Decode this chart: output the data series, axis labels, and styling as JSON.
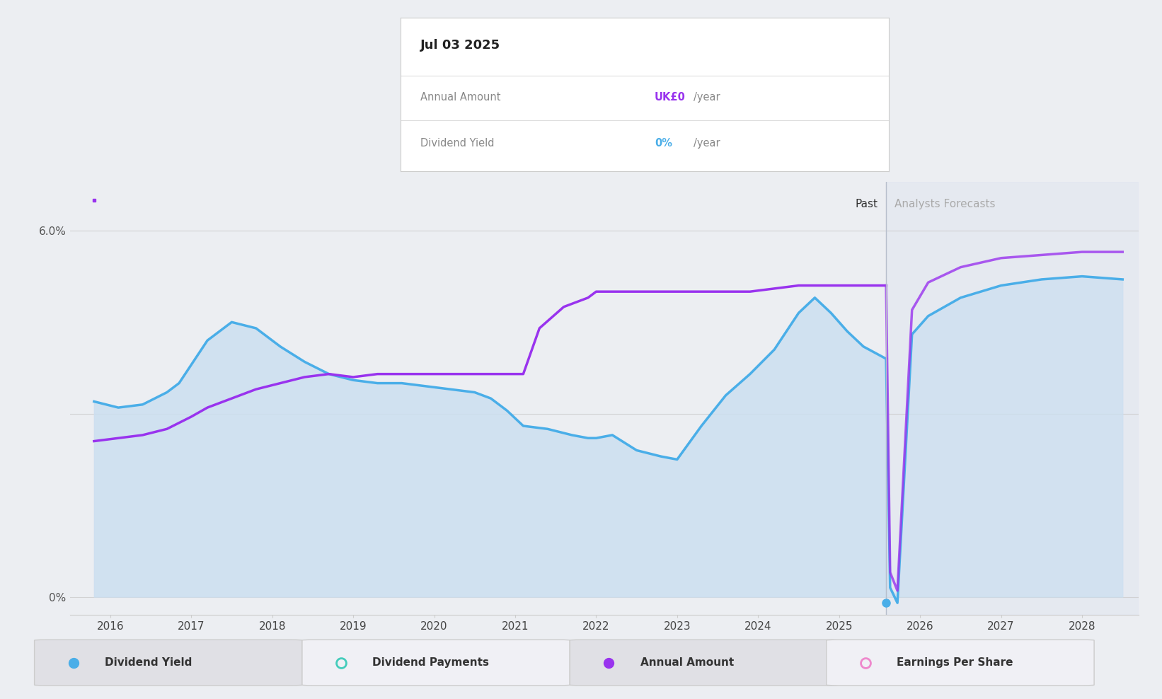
{
  "bg_color": "#eceef2",
  "plot_bg_color": "#eceef2",
  "x_min": 2015.5,
  "x_max": 2028.7,
  "y_min": -0.3,
  "y_max": 6.8,
  "divider_x": 2025.58,
  "past_label": "Past",
  "forecast_label": "Analysts Forecasts",
  "ytick_vals": [
    0,
    3,
    6
  ],
  "ytick_labels": [
    "0%",
    "",
    "6.0%"
  ],
  "xtick_labels": [
    "2016",
    "2017",
    "2018",
    "2019",
    "2020",
    "2021",
    "2022",
    "2023",
    "2024",
    "2025",
    "2026",
    "2027",
    "2028"
  ],
  "xtick_positions": [
    2016,
    2017,
    2018,
    2019,
    2020,
    2021,
    2022,
    2023,
    2024,
    2025,
    2026,
    2027,
    2028
  ],
  "blue_line_color": "#4aaee8",
  "purple_line_color": "#9933ee",
  "fill_color": "#ccdff0",
  "tooltip_date": "Jul 03 2025",
  "tooltip_annual_label": "Annual Amount",
  "tooltip_annual_value": "UK£0",
  "tooltip_annual_suffix": "/year",
  "tooltip_yield_label": "Dividend Yield",
  "tooltip_yield_value": "0%",
  "tooltip_yield_suffix": "/year",
  "annual_value_color": "#9933ee",
  "yield_value_color": "#4aaee8",
  "legend_items": [
    "Dividend Yield",
    "Dividend Payments",
    "Annual Amount",
    "Earnings Per Share"
  ],
  "legend_marker_colors": [
    "#4aaee8",
    "#44ccbb",
    "#9933ee",
    "#ee88cc"
  ],
  "legend_marker_filled": [
    true,
    false,
    true,
    false
  ],
  "dividend_yield_x": [
    2015.8,
    2016.1,
    2016.4,
    2016.7,
    2016.85,
    2017.0,
    2017.2,
    2017.5,
    2017.8,
    2018.1,
    2018.4,
    2018.7,
    2019.0,
    2019.3,
    2019.6,
    2019.9,
    2020.2,
    2020.5,
    2020.7,
    2020.9,
    2021.1,
    2021.4,
    2021.7,
    2021.9,
    2022.0,
    2022.2,
    2022.5,
    2022.8,
    2023.0,
    2023.3,
    2023.6,
    2023.9,
    2024.2,
    2024.5,
    2024.7,
    2024.9,
    2025.1,
    2025.3,
    2025.58
  ],
  "dividend_yield_y": [
    3.2,
    3.1,
    3.15,
    3.35,
    3.5,
    3.8,
    4.2,
    4.5,
    4.4,
    4.1,
    3.85,
    3.65,
    3.55,
    3.5,
    3.5,
    3.45,
    3.4,
    3.35,
    3.25,
    3.05,
    2.8,
    2.75,
    2.65,
    2.6,
    2.6,
    2.65,
    2.4,
    2.3,
    2.25,
    2.8,
    3.3,
    3.65,
    4.05,
    4.65,
    4.9,
    4.65,
    4.35,
    4.1,
    3.9
  ],
  "dividend_yield_forecast_x": [
    2025.58,
    2025.63,
    2025.72,
    2025.9,
    2026.1,
    2026.5,
    2027.0,
    2027.5,
    2028.0,
    2028.5
  ],
  "dividend_yield_forecast_y": [
    3.9,
    0.15,
    -0.1,
    4.3,
    4.6,
    4.9,
    5.1,
    5.2,
    5.25,
    5.2
  ],
  "annual_amount_x": [
    2015.8,
    2016.1,
    2016.4,
    2016.7,
    2016.85,
    2017.0,
    2017.2,
    2017.5,
    2017.8,
    2018.1,
    2018.4,
    2018.7,
    2019.0,
    2019.3,
    2019.6,
    2019.9,
    2020.2,
    2020.5,
    2020.7,
    2020.9,
    2021.0,
    2021.1,
    2021.3,
    2021.6,
    2021.9,
    2022.0,
    2022.2,
    2022.5,
    2022.8,
    2023.0,
    2023.3,
    2023.6,
    2023.9,
    2024.2,
    2024.5,
    2024.7,
    2024.9,
    2025.1,
    2025.3,
    2025.58
  ],
  "annual_amount_y": [
    2.55,
    2.6,
    2.65,
    2.75,
    2.85,
    2.95,
    3.1,
    3.25,
    3.4,
    3.5,
    3.6,
    3.65,
    3.6,
    3.65,
    3.65,
    3.65,
    3.65,
    3.65,
    3.65,
    3.65,
    3.65,
    3.65,
    4.4,
    4.75,
    4.9,
    5.0,
    5.0,
    5.0,
    5.0,
    5.0,
    5.0,
    5.0,
    5.0,
    5.05,
    5.1,
    5.1,
    5.1,
    5.1,
    5.1,
    5.1
  ],
  "annual_amount_forecast_x": [
    2025.58,
    2025.63,
    2025.72,
    2025.9,
    2026.1,
    2026.5,
    2027.0,
    2027.5,
    2028.0,
    2028.5
  ],
  "annual_amount_forecast_y": [
    5.1,
    0.4,
    0.1,
    4.7,
    5.15,
    5.4,
    5.55,
    5.6,
    5.65,
    5.65
  ]
}
